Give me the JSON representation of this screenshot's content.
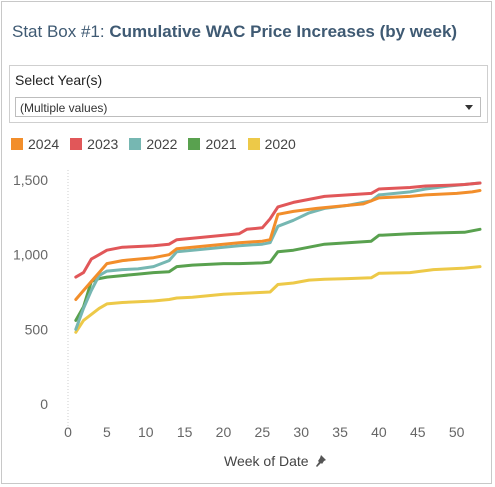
{
  "header": {
    "prefix": "Stat Box #1:",
    "title": "Cumulative WAC Price Increases (by week)"
  },
  "filter": {
    "label": "Select Year(s)",
    "value": "(Multiple values)",
    "dropdown_icon": "chevron-down-icon"
  },
  "x_axis_title": "Week of Date",
  "pin_icon": "pin-icon",
  "chart_data": {
    "type": "line",
    "xlabel": "Week of Date",
    "ylabel": "",
    "xlim": [
      0,
      53
    ],
    "ylim": [
      0,
      1500
    ],
    "x_ticks": [
      "0",
      "5",
      "10",
      "15",
      "20",
      "25",
      "30",
      "35",
      "40",
      "45",
      "50"
    ],
    "y_ticks": [
      "0",
      "500",
      "1,000",
      "1,500"
    ],
    "grid": false,
    "legend_position": "top-left",
    "series": [
      {
        "name": "2024",
        "color": "#f28e2b",
        "points": [
          [
            1,
            700
          ],
          [
            2,
            760
          ],
          [
            3,
            820
          ],
          [
            4,
            880
          ],
          [
            5,
            940
          ],
          [
            7,
            960
          ],
          [
            9,
            970
          ],
          [
            11,
            980
          ],
          [
            13,
            1000
          ],
          [
            14,
            1040
          ],
          [
            16,
            1050
          ],
          [
            18,
            1060
          ],
          [
            20,
            1070
          ],
          [
            22,
            1080
          ],
          [
            25,
            1090
          ],
          [
            26,
            1100
          ],
          [
            27,
            1270
          ],
          [
            29,
            1290
          ],
          [
            32,
            1310
          ],
          [
            34,
            1320
          ],
          [
            36,
            1330
          ],
          [
            38,
            1340
          ],
          [
            39,
            1360
          ],
          [
            40,
            1380
          ],
          [
            44,
            1390
          ],
          [
            46,
            1400
          ],
          [
            50,
            1410
          ],
          [
            52,
            1420
          ],
          [
            53,
            1430
          ]
        ]
      },
      {
        "name": "2023",
        "color": "#e15759",
        "points": [
          [
            1,
            850
          ],
          [
            2,
            880
          ],
          [
            3,
            970
          ],
          [
            4,
            1000
          ],
          [
            5,
            1030
          ],
          [
            7,
            1050
          ],
          [
            9,
            1055
          ],
          [
            11,
            1060
          ],
          [
            13,
            1070
          ],
          [
            14,
            1100
          ],
          [
            16,
            1110
          ],
          [
            18,
            1120
          ],
          [
            20,
            1130
          ],
          [
            22,
            1140
          ],
          [
            23,
            1170
          ],
          [
            25,
            1180
          ],
          [
            26,
            1240
          ],
          [
            27,
            1320
          ],
          [
            29,
            1350
          ],
          [
            31,
            1370
          ],
          [
            33,
            1390
          ],
          [
            36,
            1400
          ],
          [
            39,
            1410
          ],
          [
            40,
            1440
          ],
          [
            44,
            1450
          ],
          [
            46,
            1460
          ],
          [
            49,
            1465
          ],
          [
            51,
            1470
          ],
          [
            53,
            1480
          ]
        ]
      },
      {
        "name": "2022",
        "color": "#76b7b2",
        "points": [
          [
            1,
            500
          ],
          [
            2,
            640
          ],
          [
            3,
            760
          ],
          [
            4,
            860
          ],
          [
            5,
            890
          ],
          [
            7,
            900
          ],
          [
            9,
            905
          ],
          [
            11,
            920
          ],
          [
            13,
            960
          ],
          [
            14,
            1020
          ],
          [
            16,
            1030
          ],
          [
            18,
            1040
          ],
          [
            20,
            1050
          ],
          [
            22,
            1060
          ],
          [
            25,
            1070
          ],
          [
            26,
            1080
          ],
          [
            27,
            1190
          ],
          [
            29,
            1230
          ],
          [
            31,
            1280
          ],
          [
            33,
            1310
          ],
          [
            36,
            1330
          ],
          [
            39,
            1360
          ],
          [
            40,
            1400
          ],
          [
            44,
            1420
          ],
          [
            46,
            1440
          ],
          [
            49,
            1460
          ],
          [
            51,
            1470
          ],
          [
            53,
            1480
          ]
        ]
      },
      {
        "name": "2021",
        "color": "#59a14f",
        "points": [
          [
            1,
            560
          ],
          [
            2,
            650
          ],
          [
            3,
            820
          ],
          [
            4,
            840
          ],
          [
            5,
            850
          ],
          [
            7,
            860
          ],
          [
            9,
            870
          ],
          [
            11,
            880
          ],
          [
            13,
            885
          ],
          [
            14,
            920
          ],
          [
            16,
            930
          ],
          [
            18,
            935
          ],
          [
            20,
            940
          ],
          [
            22,
            940
          ],
          [
            25,
            945
          ],
          [
            26,
            950
          ],
          [
            27,
            1020
          ],
          [
            29,
            1030
          ],
          [
            31,
            1050
          ],
          [
            33,
            1070
          ],
          [
            36,
            1080
          ],
          [
            39,
            1090
          ],
          [
            40,
            1130
          ],
          [
            44,
            1140
          ],
          [
            47,
            1145
          ],
          [
            51,
            1150
          ],
          [
            53,
            1170
          ]
        ]
      },
      {
        "name": "2020",
        "color": "#edc948",
        "points": [
          [
            1,
            480
          ],
          [
            2,
            560
          ],
          [
            3,
            600
          ],
          [
            4,
            640
          ],
          [
            5,
            670
          ],
          [
            7,
            680
          ],
          [
            9,
            685
          ],
          [
            11,
            690
          ],
          [
            13,
            700
          ],
          [
            14,
            710
          ],
          [
            16,
            715
          ],
          [
            18,
            725
          ],
          [
            20,
            735
          ],
          [
            22,
            740
          ],
          [
            24,
            745
          ],
          [
            26,
            750
          ],
          [
            27,
            800
          ],
          [
            29,
            810
          ],
          [
            31,
            830
          ],
          [
            33,
            835
          ],
          [
            36,
            840
          ],
          [
            39,
            845
          ],
          [
            40,
            875
          ],
          [
            44,
            880
          ],
          [
            47,
            900
          ],
          [
            51,
            910
          ],
          [
            53,
            920
          ]
        ]
      }
    ]
  }
}
